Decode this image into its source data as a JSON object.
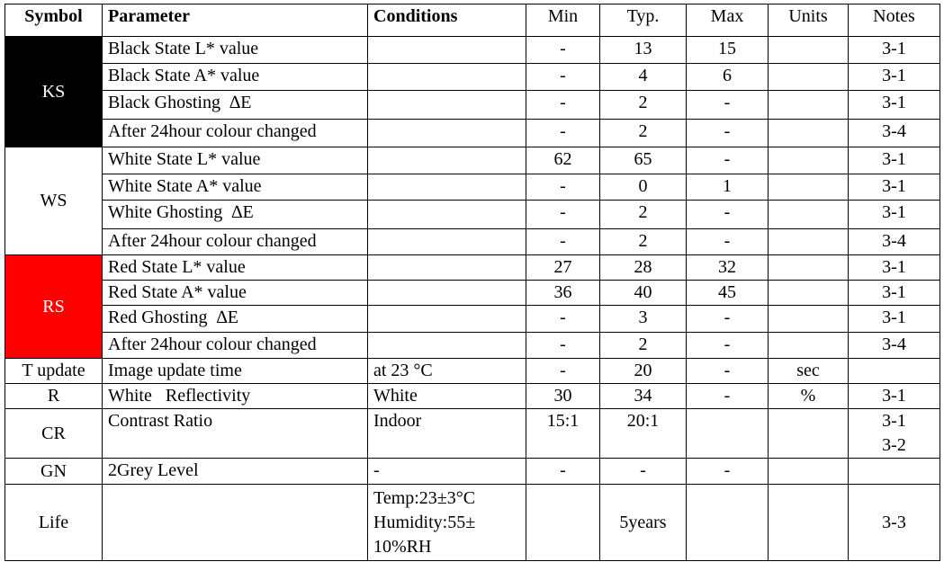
{
  "table": {
    "header": [
      "Symbol",
      "Parameter",
      "Conditions",
      "Min",
      "Typ.",
      "Max",
      "Units",
      "Notes"
    ],
    "groups": [
      {
        "symbol": "KS",
        "rows": [
          {
            "parameter": "Black State L* value",
            "min": "-",
            "typ": "13",
            "max": "15",
            "notes": "3-1"
          },
          {
            "parameter": "Black State A* value",
            "min": "-",
            "typ": "4",
            "max": "6",
            "notes": "3-1"
          },
          {
            "parameter": "Black Ghosting  ∆E",
            "min": "-",
            "typ": "2",
            "max": "-",
            "notes": "3-1"
          },
          {
            "parameter": "After 24hour colour changed",
            "min": "-",
            "typ": "2",
            "max": "-",
            "notes": "3-4"
          }
        ]
      },
      {
        "symbol": "WS",
        "rows": [
          {
            "parameter": "White State L* value",
            "min": "62",
            "typ": "65",
            "max": "-",
            "notes": "3-1"
          },
          {
            "parameter": "White State A* value",
            "min": "-",
            "typ": "0",
            "max": "1",
            "notes": "3-1"
          },
          {
            "parameter": "White Ghosting  ∆E",
            "min": "-",
            "typ": "2",
            "max": "-",
            "notes": "3-1"
          },
          {
            "parameter": "After 24hour colour changed",
            "min": "-",
            "typ": "2",
            "max": "-",
            "notes": "3-4"
          }
        ]
      },
      {
        "symbol": "RS",
        "rows": [
          {
            "parameter": "Red State L* value",
            "min": "27",
            "typ": "28",
            "max": "32",
            "notes": "3-1"
          },
          {
            "parameter": "Red State A* value",
            "min": "36",
            "typ": "40",
            "max": "45",
            "notes": "3-1"
          },
          {
            "parameter": "Red Ghosting  ∆E",
            "min": "-",
            "typ": "3",
            "max": "-",
            "notes": "3-1"
          },
          {
            "parameter": "After 24hour colour changed",
            "min": "-",
            "typ": "2",
            "max": "-",
            "notes": "3-4"
          }
        ]
      },
      {
        "symbol": "T update",
        "rows": [
          {
            "parameter": "Image update time",
            "conditions": "at 23 °C",
            "min": "-",
            "typ": "20",
            "max": "-",
            "units": "sec"
          }
        ]
      },
      {
        "symbol": "R",
        "rows": [
          {
            "parameter": "White   Reflectivity",
            "conditions": "White",
            "min": "30",
            "typ": "34",
            "max": "-",
            "units": "%",
            "notes": "3-1"
          }
        ]
      },
      {
        "symbol": "CR",
        "rows": [
          {
            "parameter": "Contrast Ratio",
            "conditions": "Indoor",
            "min": "15:1",
            "typ": "20:1",
            "notes": [
              "3-1",
              "3-2"
            ]
          }
        ]
      },
      {
        "symbol": "GN",
        "rows": [
          {
            "parameter": "2Grey Level",
            "conditions": "-",
            "min": "-",
            "typ": "-",
            "max": "-"
          }
        ]
      },
      {
        "symbol": "Life",
        "rows": [
          {
            "conditions": [
              "Temp:23±3°C",
              "Humidity:55±",
              "10%RH"
            ],
            "typ": "5years",
            "notes": "3-3"
          }
        ]
      }
    ]
  }
}
